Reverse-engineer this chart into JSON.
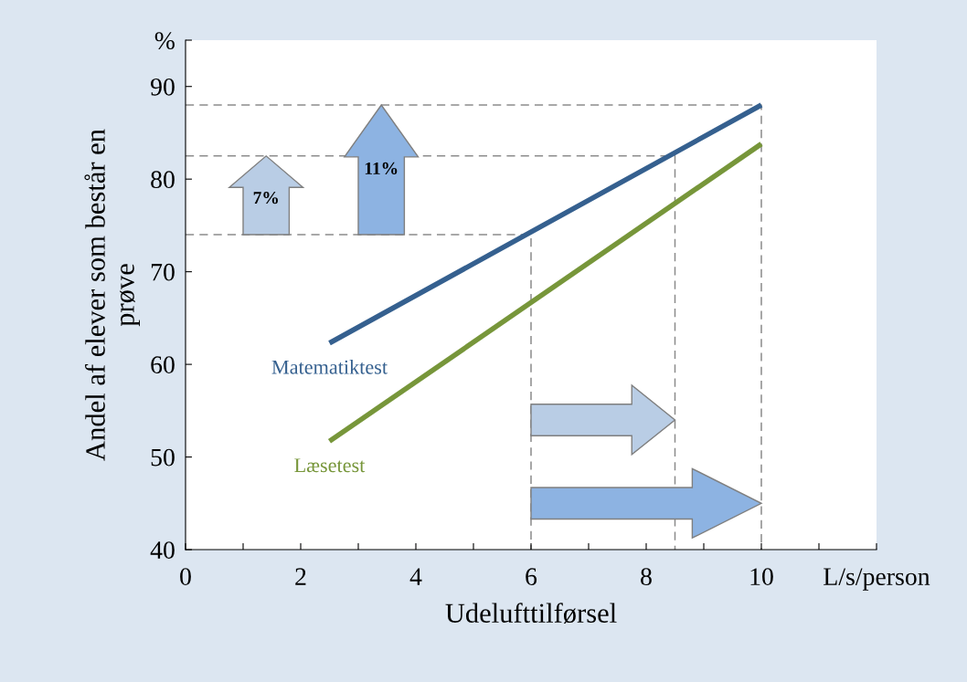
{
  "chart_data": {
    "type": "line",
    "xlabel": "Udelufttilførsel",
    "ylabel": "Andel af elever som består en\nprøve",
    "xlim": [
      0,
      12
    ],
    "ylim": [
      40,
      95
    ],
    "xticks": [
      0,
      {
        "value": 1,
        "label": null
      },
      2,
      {
        "value": 3,
        "label": null
      },
      4,
      {
        "value": 5,
        "label": null
      },
      6,
      {
        "value": 7,
        "label": null
      },
      8,
      {
        "value": 9,
        "label": null
      },
      10,
      {
        "value": 11,
        "label": null
      },
      {
        "value": 12,
        "label": "L/s/person"
      }
    ],
    "yticks": [
      40,
      50,
      60,
      70,
      80,
      90,
      {
        "value": 95,
        "label": "%"
      }
    ],
    "grid": false,
    "legend": false,
    "marker": "none",
    "series": [
      {
        "name": "Matematiktest",
        "color": "#35608f",
        "x": [
          2.5,
          10
        ],
        "values": [
          62.3,
          88.0
        ]
      },
      {
        "name": "Læsetest",
        "color": "#77963a",
        "x": [
          2.5,
          10
        ],
        "values": [
          51.7,
          83.8
        ]
      },
      {
        "color": "#8c8c8c",
        "line_style": "dashed",
        "x": [
          0,
          6,
          6
        ],
        "values": [
          74,
          74,
          40
        ]
      },
      {
        "color": "#8c8c8c",
        "line_style": "dashed",
        "x": [
          0,
          8.5,
          8.5
        ],
        "values": [
          82.5,
          82.5,
          40
        ]
      },
      {
        "color": "#8c8c8c",
        "line_style": "dashed",
        "x": [
          0,
          10,
          10
        ],
        "values": [
          88,
          88,
          40
        ]
      }
    ],
    "annotations": [
      "7%",
      "11%"
    ]
  }
}
